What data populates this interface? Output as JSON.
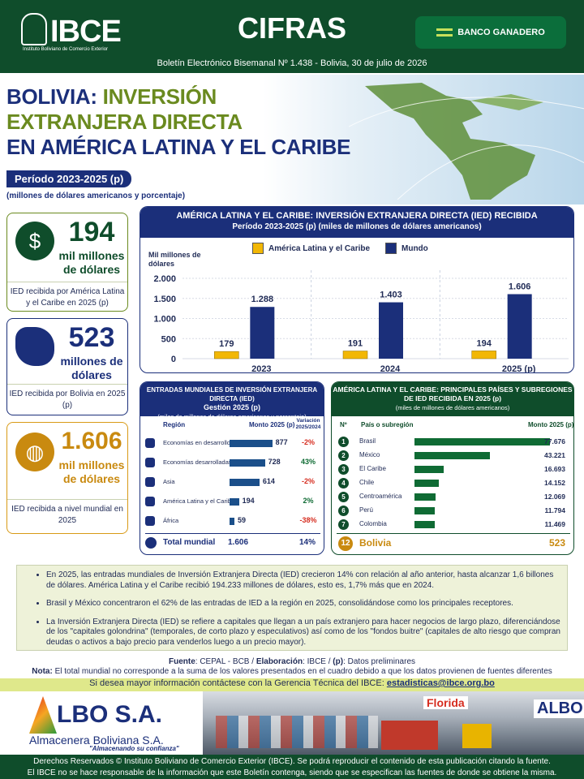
{
  "header": {
    "org": "IBCE",
    "org_sub": "Instituto Boliviano de Comercio Exterior",
    "section": "CIFRAS",
    "sponsor": "BANCO GANADERO",
    "bulletin": "Boletín Electrónico Bisemanal Nº 1.438 - Bolivia, 30 de julio de 2026"
  },
  "title": {
    "line1a": "BOLIVIA: ",
    "line1b": "INVERSIÓN",
    "line2": "EXTRANJERA DIRECTA",
    "line3": "EN AMÉRICA LATINA Y EL CARIBE",
    "period": "Período 2023-2025 (p)",
    "unit": "(millones de dólares americanos y porcentaje)"
  },
  "cards": [
    {
      "number": "194",
      "label": "mil millones de dólares",
      "desc": "IED recibida por América Latina y el Caribe en 2025 (p)",
      "icon": "globe-dollar-icon"
    },
    {
      "number": "523",
      "label": "millones de dólares",
      "desc": "IED recibida por Bolivia en 2025 (p)",
      "icon": "bolivia-map-icon"
    },
    {
      "number": "1.606",
      "label": "mil millones de dólares",
      "desc": "IED recibida a nivel mundial en 2025",
      "icon": "globe-icon"
    }
  ],
  "chart_panel": {
    "title": "AMÉRICA LATINA Y EL CARIBE: INVERSIÓN EXTRANJERA DIRECTA (IED) RECIBIDA",
    "subtitle": "Período 2023-2025 (p) (miles de millones de dólares americanos)"
  },
  "chart_data": {
    "type": "bar",
    "categories": [
      "2023",
      "2024",
      "2025 (p)"
    ],
    "series": [
      {
        "name": "América Latina y el Caribe",
        "values": [
          179,
          191,
          194
        ],
        "labels": [
          "179",
          "191",
          "194"
        ],
        "color": "#f2b705"
      },
      {
        "name": "Mundo",
        "values": [
          1288,
          1403,
          1606
        ],
        "labels": [
          "1.288",
          "1.403",
          "1.606"
        ],
        "color": "#1b2f7a"
      }
    ],
    "ylabel": "Mil millones de dólares",
    "yticks": [
      0,
      500,
      1000,
      1500,
      2000
    ],
    "ytick_labels": [
      "0",
      "500",
      "1.000",
      "1.500",
      "2.000"
    ],
    "ylim": [
      0,
      2000
    ],
    "legend": "top"
  },
  "world_table": {
    "title": "ENTRADAS MUNDIALES DE INVERSIÓN EXTRANJERA DIRECTA (IED)",
    "title2": "Gestión 2025 (p)",
    "subtitle": "(miles de millones de dólares americanos y porcentaje)",
    "col_region": "Región",
    "col_amount": "Monto 2025 (p)",
    "col_var": "Variación 2025/2024",
    "rows": [
      {
        "region": "Economías en desarrollo",
        "amount": "877",
        "value": 877,
        "var": "-2%",
        "icon": "people-icon"
      },
      {
        "region": "Economías desarrolladas",
        "amount": "728",
        "value": 728,
        "var": "43%",
        "icon": "growth-chart-icon"
      },
      {
        "region": "Asia",
        "amount": "614",
        "value": 614,
        "var": "-2%",
        "icon": "asia-globe-icon"
      },
      {
        "region": "América Latina y el Caribe",
        "amount": "194",
        "value": 194,
        "var": "2%",
        "icon": "americas-icon"
      },
      {
        "region": "África",
        "amount": "59",
        "value": 59,
        "var": "-38%",
        "icon": "africa-icon"
      }
    ],
    "total_label": "Total mundial",
    "total": "1.606",
    "total_var": "14%"
  },
  "countries_table": {
    "title": "AMÉRICA LATINA Y EL CARIBE: PRINCIPALES PAÍSES Y SUBREGIONES",
    "title2": "DE IED RECIBIDA EN 2025 (p)",
    "subtitle": "(miles de millones de dólares americanos)",
    "col_n": "Nº",
    "col_country": "País o subregión",
    "col_amount": "Monto 2025 (p)",
    "rows": [
      {
        "n": "1",
        "name": "Brasil",
        "amount": "77.676",
        "value": 77.676
      },
      {
        "n": "2",
        "name": "México",
        "amount": "43.221",
        "value": 43.221
      },
      {
        "n": "3",
        "name": "El Caribe",
        "amount": "16.693",
        "value": 16.693
      },
      {
        "n": "4",
        "name": "Chile",
        "amount": "14.152",
        "value": 14.152
      },
      {
        "n": "5",
        "name": "Centroamérica",
        "amount": "12.069",
        "value": 12.069
      },
      {
        "n": "6",
        "name": "Perú",
        "amount": "11.794",
        "value": 11.794
      },
      {
        "n": "7",
        "name": "Colombia",
        "amount": "11.469",
        "value": 11.469
      }
    ],
    "bolivia_n": "12",
    "bolivia_name": "Bolivia",
    "bolivia_amount": "523"
  },
  "notes": [
    "En 2025, las entradas mundiales de Inversión Extranjera Directa (IED) crecieron 14% con relación al año anterior, hasta alcanzar 1,6 billones de dólares. América Latina y el Caribe recibió 194.233 millones de dólares, esto es, 1,7% más que en 2024.",
    "Brasil y México concentraron el 62% de las entradas de IED a la región en 2025, consolidándose como los principales receptores.",
    "La Inversión Extranjera Directa (IED) se refiere a capitales que llegan a un país extranjero para hacer negocios de largo plazo, diferenciándose de los \"capitales golondrina\" (temporales, de corto plazo y especulativos) así como de los \"fondos buitre\" (capitales de alto riesgo que compran deudas o activos a bajo precio para venderlos luego a un precio mayor)."
  ],
  "source": {
    "fuente_label": "Fuente",
    "fuente": ": CEPAL - BCB / ",
    "elab_label": "Elaboración",
    "elab": ": IBCE / ",
    "p_label": "(p)",
    "p": ": Datos preliminares",
    "nota_label": "Nota:",
    "nota": " El total mundial no corresponde a la suma de los valores presentados en el cuadro debido a que los datos provienen de fuentes diferentes"
  },
  "contact": {
    "text": "Si desea mayor información contáctese con la Gerencia Técnica del IBCE: ",
    "email": "estadisticas@ibce.org.bo"
  },
  "ad": {
    "brand": "LBO S.A.",
    "company": "Almacenera Boliviana S.A.",
    "slogan": "\"Almacenando su confianza\"",
    "sign1": "Florida",
    "sign2": "ALBO"
  },
  "footer": {
    "line1": "Derechos Reservados © Instituto Boliviano de Comercio Exterior (IBCE). Se podrá reproducir el contenido de esta publicación citando la fuente.",
    "line2": "El IBCE no se hace responsable de la información que este Boletín contenga, siendo que se especifican las fuentes de donde se obtiene la misma."
  }
}
